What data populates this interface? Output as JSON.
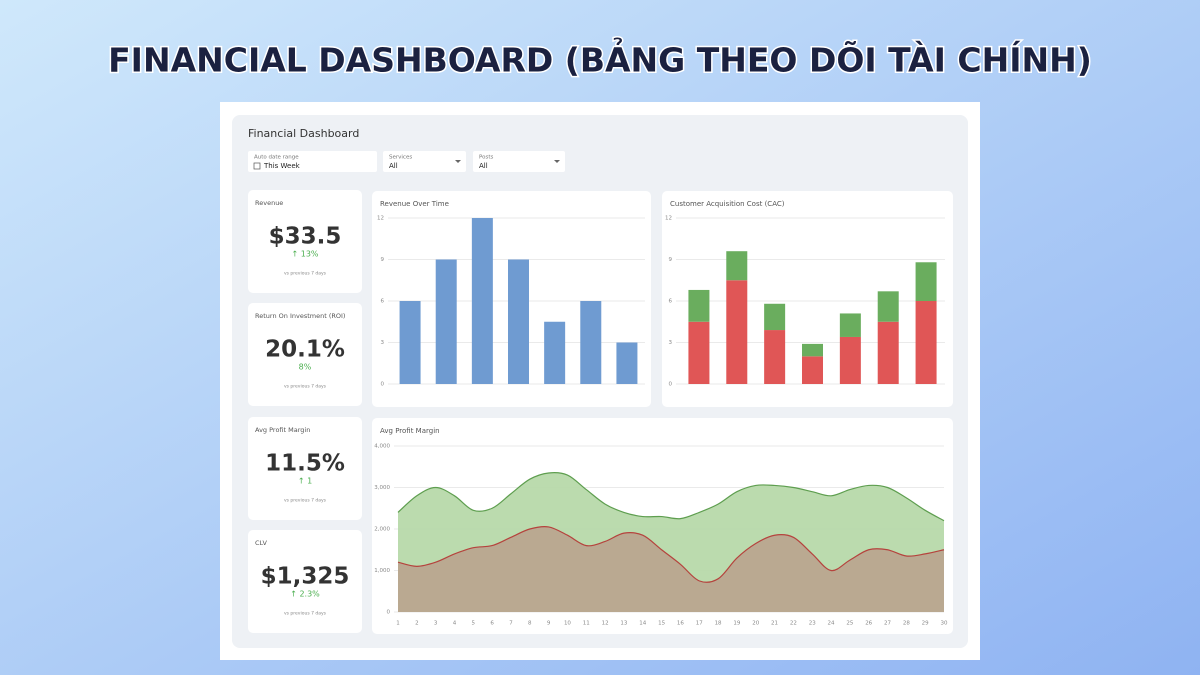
{
  "title": "FINANCIAL DASHBOARD (BẢNG THEO DÕI TÀI CHÍNH)",
  "dashboard": {
    "title": "Financial Dashboard",
    "filters": [
      {
        "label": "Auto date range",
        "value": "This Week"
      },
      {
        "label": "Services",
        "value": "All"
      },
      {
        "label": "Posts",
        "value": "All"
      }
    ],
    "kpis": [
      {
        "label": "Revenue",
        "value": "$33.5",
        "change": "↑ 13%",
        "note": "vs previous 7 days"
      },
      {
        "label": "Return On Investment (ROI)",
        "value": "20.1%",
        "change": "8%",
        "note": "vs previous 7 days"
      },
      {
        "label": "Avg Profit Margin",
        "value": "11.5%",
        "change": "↑ 1",
        "note": "vs previous 7 days"
      },
      {
        "label": "CLV",
        "value": "$1,325",
        "change": "↑ 2.3%",
        "note": "vs previous 7 days"
      }
    ]
  },
  "chart_data": [
    {
      "type": "bar",
      "title": "Revenue Over Time",
      "values": [
        6,
        9,
        12,
        9,
        4.5,
        6,
        3
      ],
      "color": "#6f9bd1",
      "ylim": [
        0,
        12
      ],
      "yticks": [
        0,
        3,
        6,
        9,
        12
      ],
      "grid": true
    },
    {
      "type": "bar",
      "stacked": true,
      "title": "Customer Acquisition Cost (CAC)",
      "series": [
        {
          "color": "#e05656",
          "values": [
            4.5,
            7.5,
            3.9,
            2.0,
            3.4,
            4.5,
            6.0
          ]
        },
        {
          "color": "#6aad5e",
          "values": [
            2.3,
            2.1,
            1.9,
            0.9,
            1.7,
            2.2,
            2.8
          ]
        }
      ],
      "ylim": [
        0,
        12
      ],
      "yticks": [
        0,
        3,
        6,
        9,
        12
      ],
      "grid": true
    },
    {
      "type": "area",
      "title": "Avg Profit Margin",
      "x": [
        1,
        2,
        3,
        4,
        5,
        6,
        7,
        8,
        9,
        10,
        11,
        12,
        13,
        14,
        15,
        16,
        17,
        18,
        19,
        20,
        21,
        22,
        23,
        24,
        25,
        26,
        27,
        28,
        29,
        30
      ],
      "series": [
        {
          "color": "#5e9e4f",
          "fill": "#b7d9aa",
          "values": [
            2400,
            2800,
            3000,
            2800,
            2450,
            2500,
            2850,
            3200,
            3350,
            3300,
            2950,
            2600,
            2400,
            2300,
            2300,
            2250,
            2400,
            2600,
            2900,
            3050,
            3050,
            3000,
            2900,
            2800,
            2950,
            3050,
            3000,
            2750,
            2450,
            2200
          ]
        },
        {
          "color": "#b5433d",
          "fill": "#b9a68f",
          "values": [
            1200,
            1100,
            1200,
            1400,
            1550,
            1600,
            1800,
            2000,
            2050,
            1850,
            1600,
            1700,
            1900,
            1850,
            1500,
            1150,
            750,
            800,
            1300,
            1650,
            1850,
            1800,
            1400,
            1000,
            1250,
            1500,
            1500,
            1350,
            1400,
            1500
          ]
        }
      ],
      "xlim": [
        1,
        30
      ],
      "ylim": [
        0,
        4000
      ],
      "yticks": [
        0,
        {
          "value": 1000,
          "label": "1,000"
        },
        {
          "value": 2000,
          "label": "2,000"
        },
        {
          "value": 3000,
          "label": "3,000"
        },
        {
          "value": 4000,
          "label": "4,000"
        }
      ],
      "grid": true
    }
  ]
}
